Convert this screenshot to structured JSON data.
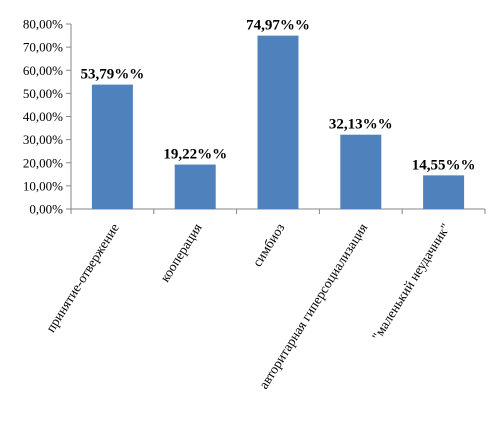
{
  "chart_data": {
    "type": "bar",
    "categories": [
      "принятие-отвержение",
      "кооперация",
      "симбиоз",
      "авторитарная гиперсоциализация",
      "\"маленький неудачник\""
    ],
    "values": [
      53.79,
      19.22,
      74.97,
      32.13,
      14.55
    ],
    "data_labels": [
      "53,79%%",
      "19,22%%",
      "74,97%%",
      "32,13%%",
      "14,55%%"
    ],
    "y_ticks": [
      "0,00%",
      "10,00%",
      "20,00%",
      "30,00%",
      "40,00%",
      "50,00%",
      "60,00%",
      "70,00%",
      "80,00%"
    ],
    "ylim": [
      0,
      80
    ],
    "grid": false,
    "legend": "none",
    "bar_color": "#4F81BD"
  }
}
